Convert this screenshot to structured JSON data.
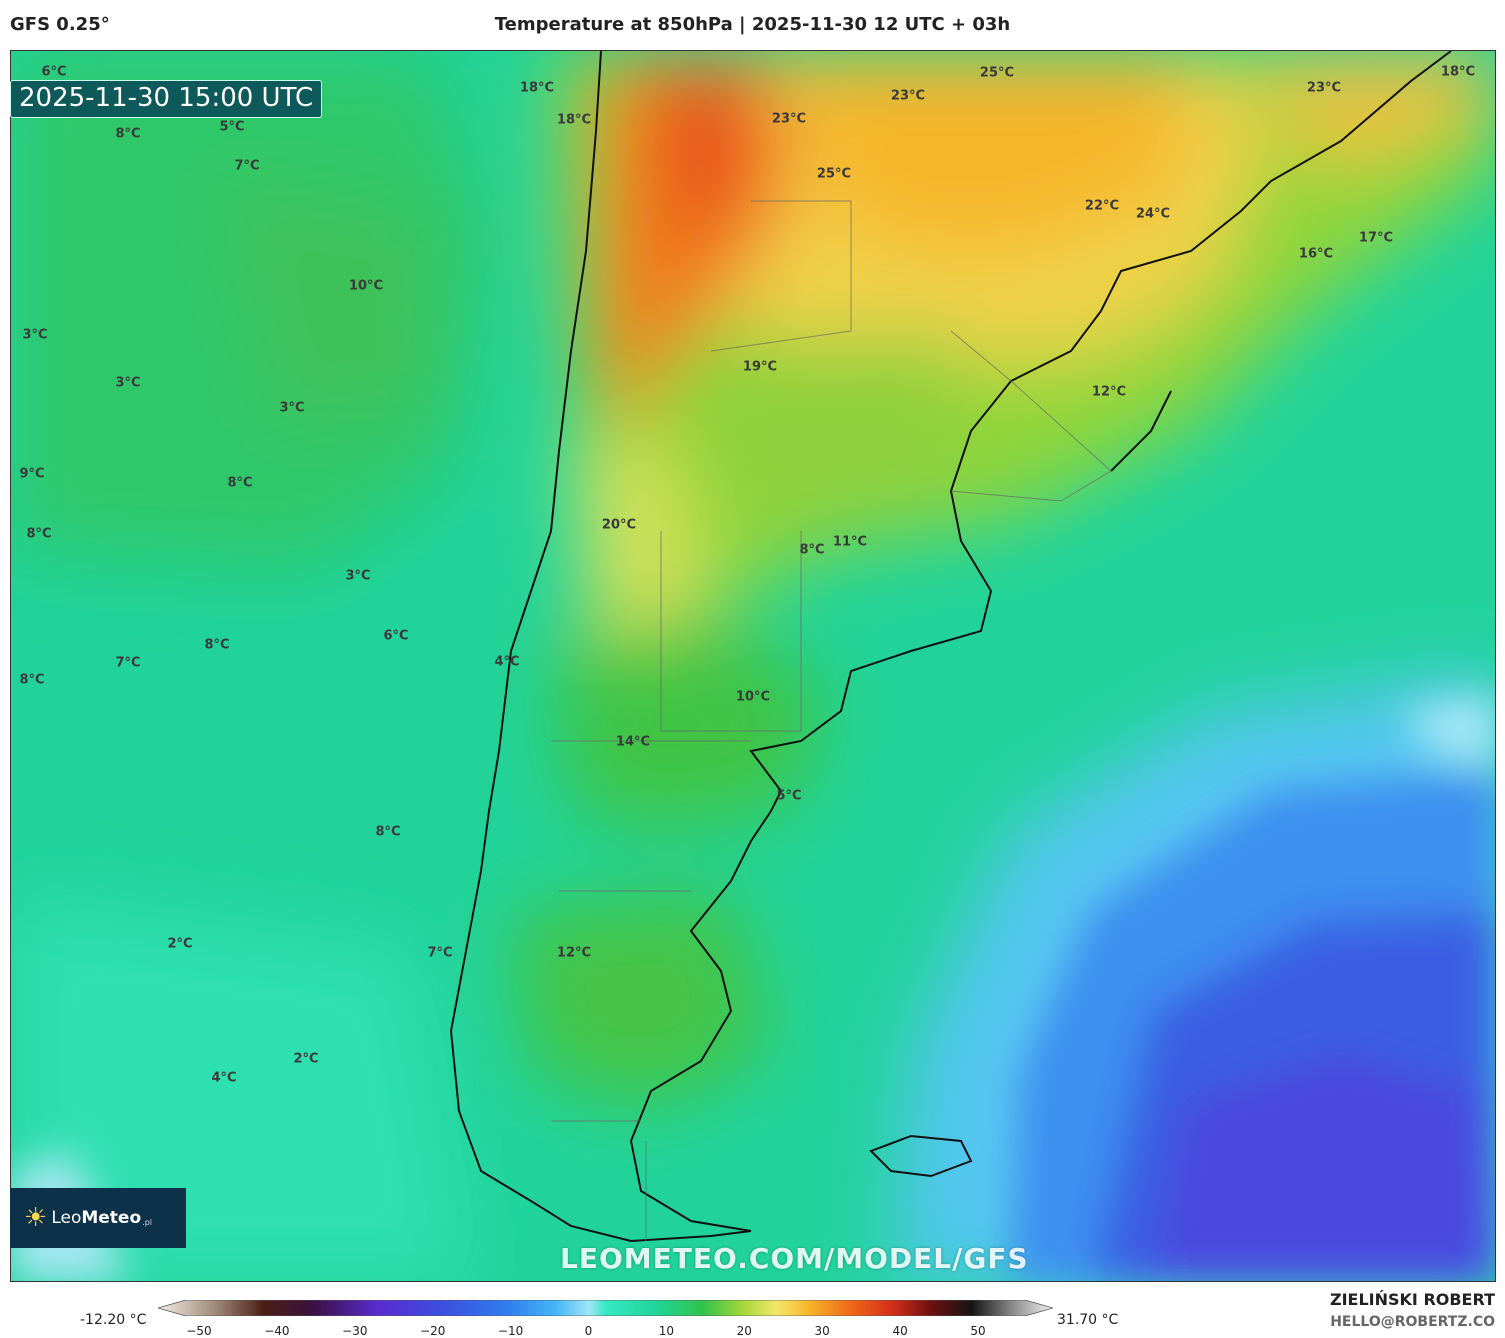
{
  "header": {
    "model": "GFS 0.25°",
    "title": "Temperature at 850hPa | 2025-11-30 12 UTC + 03h"
  },
  "timestamp": "2025-11-30 15:00 UTC",
  "temperature_labels": [
    "6°C",
    "18°C",
    "18°C",
    "5°C",
    "8°C",
    "7°C",
    "23°C",
    "23°C",
    "25°C",
    "25°C",
    "23°C",
    "18°C",
    "22°C",
    "24°C",
    "16°C",
    "17°C",
    "10°C",
    "3°C",
    "3°C",
    "3°C",
    "19°C",
    "12°C",
    "9°C",
    "8°C",
    "8°C",
    "20°C",
    "8°C",
    "11°C",
    "3°C",
    "6°C",
    "8°C",
    "7°C",
    "8°C",
    "4°C",
    "10°C",
    "14°C",
    "5°C",
    "8°C",
    "2°C",
    "7°C",
    "12°C",
    "2°C",
    "4°C"
  ],
  "logo": {
    "brand_light": "Leo",
    "brand_bold": "Meteo",
    "suffix": ".pl"
  },
  "watermark": "LEOMETEO.COM/MODEL/GFS",
  "colorbar": {
    "min_label": "-12.20 °C",
    "max_label": "31.70 °C",
    "ticks": [
      "−50",
      "−40",
      "−30",
      "−20",
      "−10",
      "0",
      "10",
      "20",
      "30",
      "40",
      "50"
    ],
    "range": [
      -55,
      55
    ],
    "stops": [
      {
        "v": -55,
        "c": "#f4efe6"
      },
      {
        "v": -48,
        "c": "#a08a78"
      },
      {
        "v": -42,
        "c": "#4a1f16"
      },
      {
        "v": -36,
        "c": "#3b1040"
      },
      {
        "v": -28,
        "c": "#5a2bd0"
      },
      {
        "v": -20,
        "c": "#3c4fe0"
      },
      {
        "v": -12,
        "c": "#2f7ef0"
      },
      {
        "v": -6,
        "c": "#46b8f5"
      },
      {
        "v": -2,
        "c": "#9fe6f7"
      },
      {
        "v": 0,
        "c": "#37e8c6"
      },
      {
        "v": 6,
        "c": "#1fd69a"
      },
      {
        "v": 12,
        "c": "#31c24a"
      },
      {
        "v": 17,
        "c": "#a8d83a"
      },
      {
        "v": 21,
        "c": "#f3e66a"
      },
      {
        "v": 25,
        "c": "#f6b52a"
      },
      {
        "v": 30,
        "c": "#f06a18"
      },
      {
        "v": 35,
        "c": "#d6301a"
      },
      {
        "v": 40,
        "c": "#6e1010"
      },
      {
        "v": 45,
        "c": "#141414"
      },
      {
        "v": 50,
        "c": "#8a8a8a"
      },
      {
        "v": 55,
        "c": "#f3f3f3"
      }
    ]
  },
  "author": {
    "name": "ZIELIŃSKI ROBERT",
    "email": "HELLO@ROBERTZ.CO"
  }
}
